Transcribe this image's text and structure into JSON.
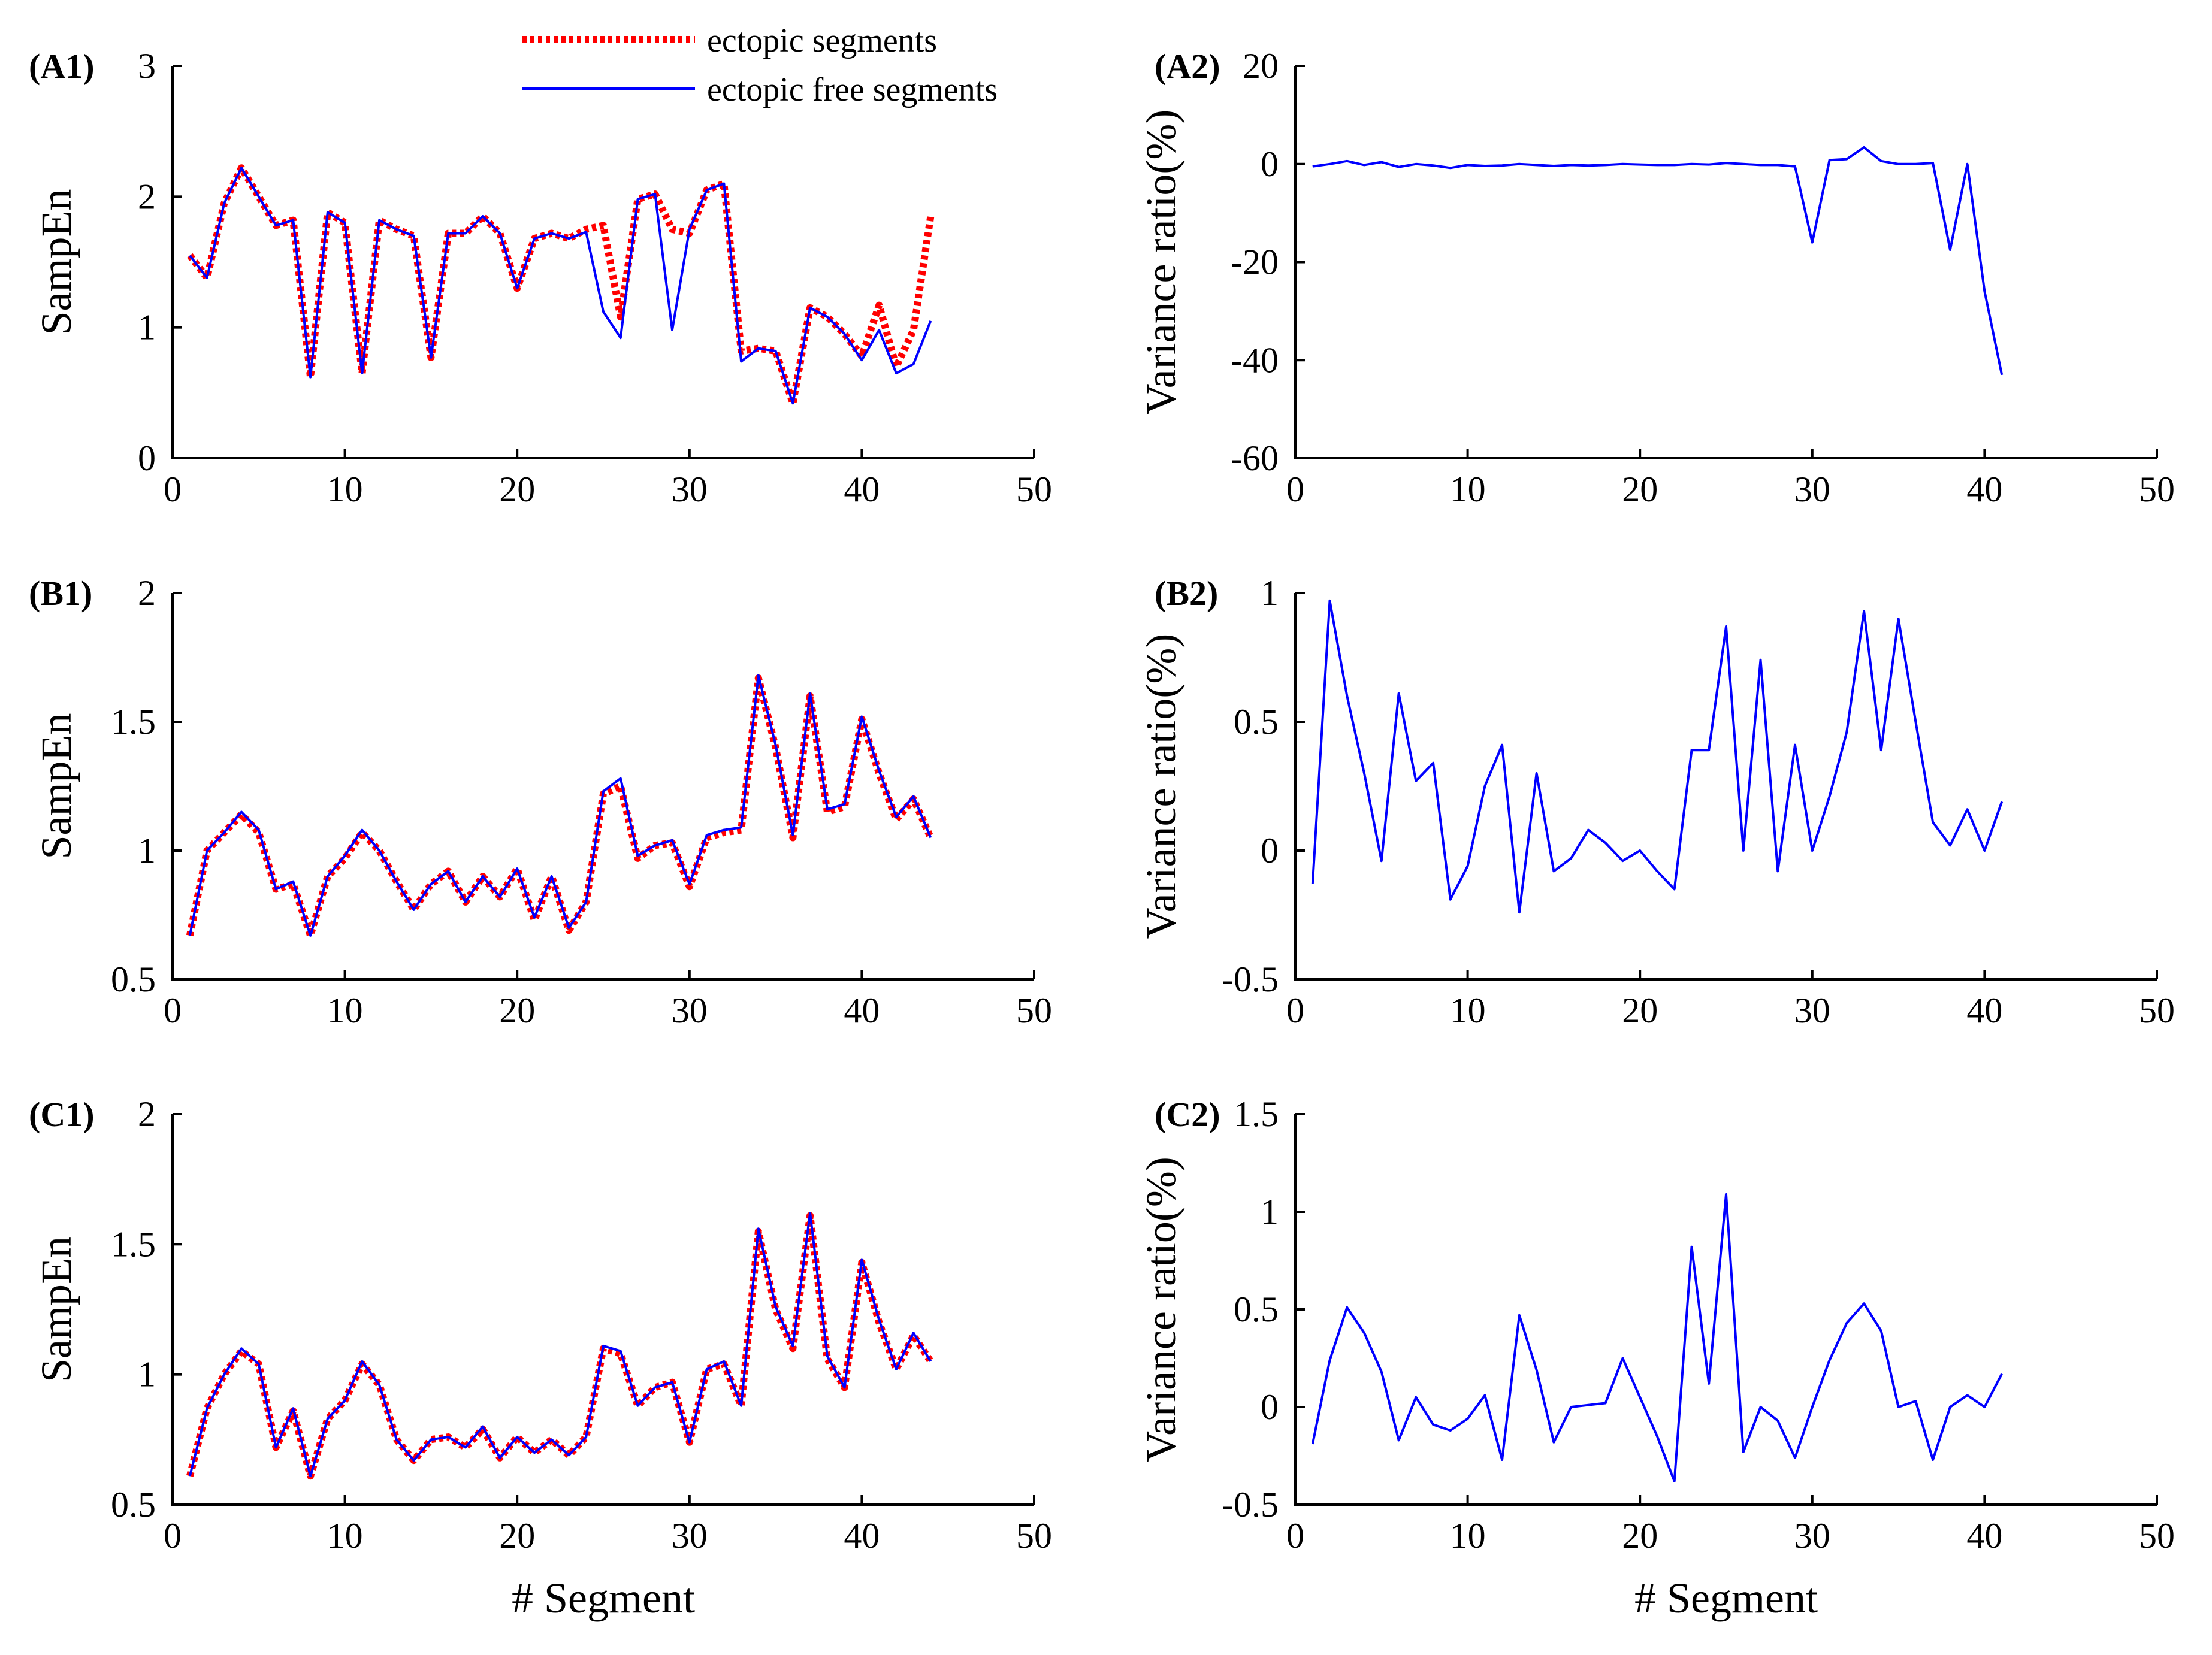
{
  "legend": {
    "ectopic_label": "ectopic segments",
    "free_label": "ectopic free segments",
    "ectopic_color": "#ff0000",
    "free_color": "#0000ff"
  },
  "chart_data": [
    {
      "id": "A1",
      "panel_label": "(A1)",
      "type": "line",
      "xlabel": "",
      "ylabel": "SampEn",
      "xlim": [
        0,
        50
      ],
      "ylim": [
        0,
        3
      ],
      "xticks": [
        0,
        10,
        20,
        30,
        40,
        50
      ],
      "yticks": [
        0,
        1,
        2,
        3
      ],
      "series": [
        {
          "name": "ectopic segments",
          "color": "#ff0000",
          "style": "dotted",
          "x": [
            1,
            2,
            3,
            4,
            5,
            6,
            7,
            8,
            9,
            10,
            11,
            12,
            13,
            14,
            15,
            16,
            17,
            18,
            19,
            20,
            21,
            22,
            23,
            24,
            25,
            26,
            27,
            28,
            29,
            30,
            31,
            32,
            33,
            34,
            35,
            36,
            37,
            38,
            39,
            40,
            41,
            42,
            43,
            44
          ],
          "values": [
            1.55,
            1.38,
            1.95,
            2.22,
            2.0,
            1.78,
            1.82,
            0.62,
            1.88,
            1.8,
            0.65,
            1.82,
            1.75,
            1.7,
            0.77,
            1.72,
            1.72,
            1.85,
            1.72,
            1.3,
            1.68,
            1.72,
            1.68,
            1.75,
            1.78,
            1.08,
            1.98,
            2.02,
            1.75,
            1.72,
            2.05,
            2.1,
            0.82,
            0.84,
            0.82,
            0.42,
            1.15,
            1.08,
            0.95,
            0.78,
            1.17,
            0.7,
            0.98,
            1.85
          ]
        },
        {
          "name": "ectopic free segments",
          "color": "#0000ff",
          "style": "solid",
          "x": [
            1,
            2,
            3,
            4,
            5,
            6,
            7,
            8,
            9,
            10,
            11,
            12,
            13,
            14,
            15,
            16,
            17,
            18,
            19,
            20,
            21,
            22,
            23,
            24,
            25,
            26,
            27,
            28,
            29,
            30,
            31,
            32,
            33,
            34,
            35,
            36,
            37,
            38,
            39,
            40,
            41,
            42,
            43,
            44
          ],
          "values": [
            1.55,
            1.38,
            1.95,
            2.22,
            2.0,
            1.78,
            1.82,
            0.62,
            1.88,
            1.8,
            0.65,
            1.82,
            1.75,
            1.7,
            0.77,
            1.72,
            1.72,
            1.85,
            1.72,
            1.3,
            1.68,
            1.72,
            1.68,
            1.73,
            1.12,
            0.92,
            1.98,
            2.02,
            0.98,
            1.75,
            2.05,
            2.1,
            0.74,
            0.84,
            0.82,
            0.42,
            1.15,
            1.08,
            0.95,
            0.75,
            0.98,
            0.65,
            0.72,
            1.05
          ]
        }
      ]
    },
    {
      "id": "A2",
      "panel_label": "(A2)",
      "type": "line",
      "xlabel": "",
      "ylabel": "Variance ratio(%)",
      "xlim": [
        0,
        50
      ],
      "ylim": [
        -60,
        20
      ],
      "xticks": [
        0,
        10,
        20,
        30,
        40,
        50
      ],
      "yticks": [
        -60,
        -40,
        -20,
        0,
        20
      ],
      "series": [
        {
          "color": "#0000ff",
          "style": "solid",
          "x": [
            1,
            2,
            3,
            4,
            5,
            6,
            7,
            8,
            9,
            10,
            11,
            12,
            13,
            14,
            15,
            16,
            17,
            18,
            19,
            20,
            21,
            22,
            23,
            24,
            25,
            26,
            27,
            28,
            29,
            30,
            31,
            32,
            33,
            34,
            35,
            36,
            37,
            38,
            39,
            40,
            41
          ],
          "values": [
            -0.5,
            0,
            0.6,
            -0.2,
            0.4,
            -0.6,
            0,
            -0.3,
            -0.8,
            -0.2,
            -0.4,
            -0.3,
            0,
            -0.2,
            -0.4,
            -0.2,
            -0.3,
            -0.2,
            0,
            -0.1,
            -0.2,
            -0.2,
            0,
            -0.1,
            0.2,
            0,
            -0.2,
            -0.2,
            -0.5,
            -16,
            0.8,
            1,
            3.4,
            0.6,
            0,
            0,
            0.2,
            -17.5,
            0,
            -26,
            -43
          ]
        }
      ]
    },
    {
      "id": "B1",
      "panel_label": "(B1)",
      "type": "line",
      "xlabel": "",
      "ylabel": "SampEn",
      "xlim": [
        0,
        50
      ],
      "ylim": [
        0.5,
        2
      ],
      "xticks": [
        0,
        10,
        20,
        30,
        40,
        50
      ],
      "yticks": [
        0.5,
        1,
        1.5,
        2
      ],
      "series": [
        {
          "name": "ectopic segments",
          "color": "#ff0000",
          "style": "dotted",
          "x": [
            1,
            2,
            3,
            4,
            5,
            6,
            7,
            8,
            9,
            10,
            11,
            12,
            13,
            14,
            15,
            16,
            17,
            18,
            19,
            20,
            21,
            22,
            23,
            24,
            25,
            26,
            27,
            28,
            29,
            30,
            31,
            32,
            33,
            34,
            35,
            36,
            37,
            38,
            39,
            40,
            41,
            42,
            43,
            44
          ],
          "values": [
            0.67,
            1.0,
            1.07,
            1.14,
            1.07,
            0.85,
            0.87,
            0.67,
            0.9,
            0.97,
            1.07,
            1.0,
            0.88,
            0.77,
            0.87,
            0.92,
            0.8,
            0.9,
            0.82,
            0.93,
            0.73,
            0.9,
            0.69,
            0.8,
            1.22,
            1.25,
            0.97,
            1.02,
            1.03,
            0.86,
            1.05,
            1.07,
            1.08,
            1.67,
            1.4,
            1.05,
            1.6,
            1.15,
            1.17,
            1.51,
            1.3,
            1.12,
            1.2,
            1.05
          ]
        },
        {
          "name": "ectopic free segments",
          "color": "#0000ff",
          "style": "solid",
          "x": [
            1,
            2,
            3,
            4,
            5,
            6,
            7,
            8,
            9,
            10,
            11,
            12,
            13,
            14,
            15,
            16,
            17,
            18,
            19,
            20,
            21,
            22,
            23,
            24,
            25,
            26,
            27,
            28,
            29,
            30,
            31,
            32,
            33,
            34,
            35,
            36,
            37,
            38,
            39,
            40,
            41,
            42,
            43,
            44
          ],
          "values": [
            0.67,
            1.0,
            1.07,
            1.15,
            1.08,
            0.85,
            0.88,
            0.67,
            0.9,
            0.98,
            1.08,
            1.0,
            0.88,
            0.77,
            0.87,
            0.92,
            0.8,
            0.9,
            0.82,
            0.93,
            0.74,
            0.9,
            0.7,
            0.8,
            1.23,
            1.28,
            0.98,
            1.02,
            1.04,
            0.87,
            1.06,
            1.08,
            1.09,
            1.68,
            1.41,
            1.06,
            1.61,
            1.16,
            1.18,
            1.52,
            1.31,
            1.13,
            1.21,
            1.05
          ]
        }
      ]
    },
    {
      "id": "B2",
      "panel_label": "(B2)",
      "type": "line",
      "xlabel": "",
      "ylabel": "Variance ratio(%)",
      "xlim": [
        0,
        50
      ],
      "ylim": [
        -0.5,
        1
      ],
      "xticks": [
        0,
        10,
        20,
        30,
        40,
        50
      ],
      "yticks": [
        -0.5,
        0,
        0.5,
        1
      ],
      "series": [
        {
          "color": "#0000ff",
          "style": "solid",
          "x": [
            1,
            2,
            3,
            4,
            5,
            6,
            7,
            8,
            9,
            10,
            11,
            12,
            13,
            14,
            15,
            16,
            17,
            18,
            19,
            20,
            21,
            22,
            23,
            24,
            25,
            26,
            27,
            28,
            29,
            30,
            31,
            32,
            33,
            34,
            35,
            36,
            37,
            38,
            39,
            40,
            41
          ],
          "values": [
            -0.13,
            0.97,
            0.6,
            0.3,
            -0.04,
            0.61,
            0.27,
            0.34,
            -0.19,
            -0.06,
            0.25,
            0.41,
            -0.24,
            0.3,
            -0.08,
            -0.03,
            0.08,
            0.03,
            -0.04,
            0,
            -0.08,
            -0.15,
            0.39,
            0.39,
            0.87,
            0,
            0.74,
            -0.08,
            0.41,
            0,
            0.21,
            0.46,
            0.93,
            0.39,
            0.9,
            0.5,
            0.11,
            0.02,
            0.16,
            0,
            0.19
          ]
        }
      ]
    },
    {
      "id": "C1",
      "panel_label": "(C1)",
      "type": "line",
      "xlabel": "# Segment",
      "ylabel": "SampEn",
      "xlim": [
        0,
        50
      ],
      "ylim": [
        0.5,
        2
      ],
      "xticks": [
        0,
        10,
        20,
        30,
        40,
        50
      ],
      "yticks": [
        0.5,
        1,
        1.5,
        2
      ],
      "series": [
        {
          "name": "ectopic segments",
          "color": "#ff0000",
          "style": "dotted",
          "x": [
            1,
            2,
            3,
            4,
            5,
            6,
            7,
            8,
            9,
            10,
            11,
            12,
            13,
            14,
            15,
            16,
            17,
            18,
            19,
            20,
            21,
            22,
            23,
            24,
            25,
            26,
            27,
            28,
            29,
            30,
            31,
            32,
            33,
            34,
            35,
            36,
            37,
            38,
            39,
            40,
            41,
            42,
            43,
            44
          ],
          "values": [
            0.61,
            0.87,
            1.0,
            1.09,
            1.04,
            0.72,
            0.86,
            0.61,
            0.83,
            0.9,
            1.04,
            0.96,
            0.75,
            0.67,
            0.75,
            0.76,
            0.72,
            0.79,
            0.68,
            0.76,
            0.7,
            0.75,
            0.69,
            0.76,
            1.1,
            1.08,
            0.88,
            0.95,
            0.97,
            0.74,
            1.02,
            1.04,
            0.88,
            1.55,
            1.25,
            1.1,
            1.61,
            1.06,
            0.95,
            1.43,
            1.2,
            1.02,
            1.15,
            1.05
          ]
        },
        {
          "name": "ectopic free segments",
          "color": "#0000ff",
          "style": "solid",
          "x": [
            1,
            2,
            3,
            4,
            5,
            6,
            7,
            8,
            9,
            10,
            11,
            12,
            13,
            14,
            15,
            16,
            17,
            18,
            19,
            20,
            21,
            22,
            23,
            24,
            25,
            26,
            27,
            28,
            29,
            30,
            31,
            32,
            33,
            34,
            35,
            36,
            37,
            38,
            39,
            40,
            41,
            42,
            43,
            44
          ],
          "values": [
            0.61,
            0.87,
            1.0,
            1.1,
            1.04,
            0.72,
            0.87,
            0.61,
            0.83,
            0.9,
            1.05,
            0.96,
            0.75,
            0.67,
            0.75,
            0.76,
            0.72,
            0.8,
            0.68,
            0.76,
            0.7,
            0.75,
            0.69,
            0.76,
            1.11,
            1.09,
            0.88,
            0.95,
            0.97,
            0.74,
            1.02,
            1.05,
            0.88,
            1.56,
            1.26,
            1.11,
            1.62,
            1.07,
            0.95,
            1.44,
            1.21,
            1.02,
            1.16,
            1.05
          ]
        }
      ]
    },
    {
      "id": "C2",
      "panel_label": "(C2)",
      "type": "line",
      "xlabel": "# Segment",
      "ylabel": "Variance ratio(%)",
      "xlim": [
        0,
        50
      ],
      "ylim": [
        -0.5,
        1.5
      ],
      "xticks": [
        0,
        10,
        20,
        30,
        40,
        50
      ],
      "yticks": [
        -0.5,
        0,
        0.5,
        1,
        1.5
      ],
      "series": [
        {
          "color": "#0000ff",
          "style": "solid",
          "x": [
            1,
            2,
            3,
            4,
            5,
            6,
            7,
            8,
            9,
            10,
            11,
            12,
            13,
            14,
            15,
            16,
            17,
            18,
            19,
            20,
            21,
            22,
            23,
            24,
            25,
            26,
            27,
            28,
            29,
            30,
            31,
            32,
            33,
            34,
            35,
            36,
            37,
            38,
            39,
            40,
            41
          ],
          "values": [
            -0.19,
            0.24,
            0.51,
            0.38,
            0.18,
            -0.17,
            0.05,
            -0.09,
            -0.12,
            -0.06,
            0.06,
            -0.27,
            0.47,
            0.19,
            -0.18,
            0,
            0.01,
            0.02,
            0.25,
            0.05,
            -0.15,
            -0.38,
            0.82,
            0.12,
            1.09,
            -0.23,
            0,
            -0.07,
            -0.26,
            0,
            0.24,
            0.43,
            0.53,
            0.39,
            0,
            0.03,
            -0.27,
            0,
            0.06,
            0,
            0.17
          ]
        }
      ]
    }
  ]
}
